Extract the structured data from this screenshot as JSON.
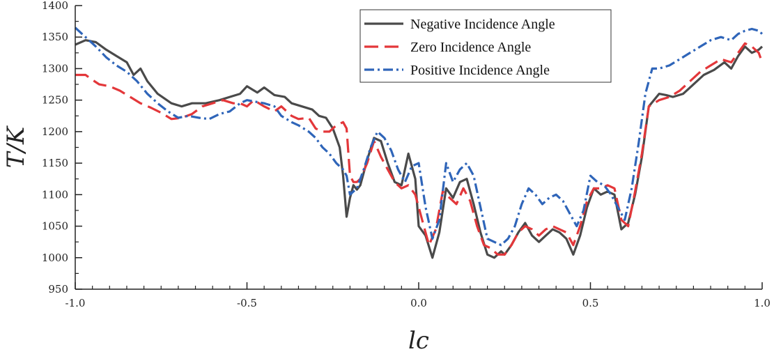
{
  "chart_data": {
    "type": "line",
    "title": "",
    "xlabel": "lc",
    "ylabel": "T/K",
    "xlim": [
      -1.0,
      1.0
    ],
    "ylim": [
      950,
      1400
    ],
    "x_ticks": [
      -1.0,
      -0.5,
      0.0,
      0.5,
      1.0
    ],
    "x_tick_labels": [
      "-1.0",
      "-0.5",
      "0.0",
      "0.5",
      "1.0"
    ],
    "y_ticks": [
      950,
      1000,
      1050,
      1100,
      1150,
      1200,
      1250,
      1300,
      1350,
      1400
    ],
    "y_tick_labels": [
      "950",
      "1000",
      "1050",
      "1100",
      "1150",
      "1200",
      "1250",
      "1300",
      "1350",
      "1400"
    ],
    "grid": false,
    "legend_position": "top-right",
    "series": [
      {
        "name": "Negative Incidence Angle",
        "color": "#4a4a4a",
        "dash": "solid",
        "x": [
          -1.0,
          -0.97,
          -0.94,
          -0.91,
          -0.88,
          -0.85,
          -0.83,
          -0.81,
          -0.79,
          -0.76,
          -0.72,
          -0.69,
          -0.66,
          -0.62,
          -0.58,
          -0.55,
          -0.52,
          -0.5,
          -0.47,
          -0.45,
          -0.42,
          -0.39,
          -0.37,
          -0.34,
          -0.31,
          -0.29,
          -0.27,
          -0.25,
          -0.23,
          -0.22,
          -0.21,
          -0.2,
          -0.19,
          -0.18,
          -0.17,
          -0.15,
          -0.13,
          -0.11,
          -0.09,
          -0.07,
          -0.05,
          -0.03,
          -0.01,
          0.0,
          0.02,
          0.04,
          0.06,
          0.08,
          0.1,
          0.12,
          0.14,
          0.16,
          0.18,
          0.2,
          0.22,
          0.24,
          0.25,
          0.27,
          0.29,
          0.31,
          0.33,
          0.35,
          0.37,
          0.39,
          0.41,
          0.43,
          0.45,
          0.47,
          0.49,
          0.51,
          0.53,
          0.55,
          0.57,
          0.59,
          0.61,
          0.63,
          0.65,
          0.67,
          0.7,
          0.72,
          0.74,
          0.77,
          0.8,
          0.83,
          0.86,
          0.89,
          0.91,
          0.93,
          0.95,
          0.97,
          0.99,
          1.0
        ],
        "y": [
          1338,
          1345,
          1342,
          1330,
          1320,
          1310,
          1290,
          1300,
          1280,
          1260,
          1245,
          1240,
          1245,
          1245,
          1250,
          1255,
          1260,
          1272,
          1262,
          1270,
          1258,
          1255,
          1245,
          1240,
          1235,
          1225,
          1222,
          1205,
          1175,
          1130,
          1065,
          1095,
          1115,
          1108,
          1115,
          1155,
          1190,
          1185,
          1150,
          1120,
          1115,
          1165,
          1125,
          1050,
          1035,
          1000,
          1040,
          1110,
          1095,
          1120,
          1125,
          1085,
          1040,
          1005,
          1000,
          1010,
          1005,
          1020,
          1040,
          1055,
          1035,
          1025,
          1035,
          1045,
          1040,
          1030,
          1005,
          1035,
          1080,
          1110,
          1100,
          1105,
          1100,
          1045,
          1055,
          1100,
          1160,
          1240,
          1260,
          1258,
          1255,
          1260,
          1275,
          1290,
          1298,
          1310,
          1300,
          1320,
          1335,
          1325,
          1330,
          1335
        ]
      },
      {
        "name": "Zero Incidence Angle",
        "color": "#e3373a",
        "dash": "dashed",
        "x": [
          -1.0,
          -0.97,
          -0.95,
          -0.93,
          -0.9,
          -0.87,
          -0.84,
          -0.81,
          -0.78,
          -0.75,
          -0.72,
          -0.69,
          -0.66,
          -0.63,
          -0.6,
          -0.57,
          -0.54,
          -0.52,
          -0.5,
          -0.48,
          -0.45,
          -0.42,
          -0.4,
          -0.37,
          -0.35,
          -0.32,
          -0.3,
          -0.28,
          -0.26,
          -0.24,
          -0.22,
          -0.21,
          -0.2,
          -0.19,
          -0.18,
          -0.17,
          -0.15,
          -0.13,
          -0.11,
          -0.09,
          -0.07,
          -0.05,
          -0.03,
          -0.01,
          0.01,
          0.03,
          0.05,
          0.07,
          0.09,
          0.11,
          0.13,
          0.15,
          0.17,
          0.19,
          0.21,
          0.23,
          0.25,
          0.27,
          0.29,
          0.31,
          0.33,
          0.35,
          0.37,
          0.39,
          0.41,
          0.43,
          0.45,
          0.47,
          0.49,
          0.51,
          0.53,
          0.55,
          0.57,
          0.59,
          0.61,
          0.63,
          0.65,
          0.67,
          0.7,
          0.73,
          0.76,
          0.79,
          0.82,
          0.85,
          0.88,
          0.91,
          0.93,
          0.95,
          0.97,
          0.99,
          1.0
        ],
        "y": [
          1290,
          1290,
          1282,
          1275,
          1272,
          1265,
          1255,
          1245,
          1238,
          1230,
          1220,
          1222,
          1228,
          1240,
          1245,
          1250,
          1245,
          1245,
          1240,
          1250,
          1240,
          1232,
          1240,
          1225,
          1220,
          1222,
          1205,
          1200,
          1200,
          1210,
          1215,
          1205,
          1130,
          1120,
          1120,
          1125,
          1150,
          1185,
          1160,
          1140,
          1120,
          1110,
          1115,
          1100,
          1060,
          1020,
          1045,
          1105,
          1095,
          1085,
          1110,
          1090,
          1050,
          1020,
          1015,
          1005,
          1005,
          1020,
          1040,
          1050,
          1045,
          1035,
          1045,
          1050,
          1045,
          1040,
          1020,
          1050,
          1090,
          1110,
          1110,
          1115,
          1110,
          1060,
          1050,
          1105,
          1165,
          1240,
          1250,
          1255,
          1265,
          1280,
          1295,
          1305,
          1315,
          1310,
          1325,
          1340,
          1335,
          1325,
          1310
        ]
      },
      {
        "name": "Positive Incidence Angle",
        "color": "#2f65b9",
        "dash": "dashdot",
        "x": [
          -1.0,
          -0.97,
          -0.94,
          -0.91,
          -0.88,
          -0.85,
          -0.82,
          -0.79,
          -0.76,
          -0.73,
          -0.7,
          -0.67,
          -0.64,
          -0.61,
          -0.58,
          -0.55,
          -0.52,
          -0.5,
          -0.48,
          -0.45,
          -0.42,
          -0.4,
          -0.37,
          -0.35,
          -0.32,
          -0.3,
          -0.28,
          -0.26,
          -0.24,
          -0.22,
          -0.21,
          -0.2,
          -0.19,
          -0.18,
          -0.16,
          -0.14,
          -0.12,
          -0.1,
          -0.08,
          -0.06,
          -0.04,
          -0.02,
          0.0,
          0.02,
          0.04,
          0.06,
          0.08,
          0.1,
          0.12,
          0.14,
          0.16,
          0.18,
          0.2,
          0.22,
          0.24,
          0.26,
          0.28,
          0.3,
          0.32,
          0.34,
          0.36,
          0.38,
          0.4,
          0.42,
          0.44,
          0.46,
          0.48,
          0.5,
          0.52,
          0.54,
          0.56,
          0.58,
          0.6,
          0.62,
          0.64,
          0.66,
          0.68,
          0.7,
          0.73,
          0.76,
          0.79,
          0.82,
          0.85,
          0.88,
          0.91,
          0.93,
          0.95,
          0.97,
          0.99,
          1.0
        ],
        "y": [
          1365,
          1350,
          1335,
          1318,
          1305,
          1295,
          1280,
          1260,
          1245,
          1232,
          1222,
          1225,
          1222,
          1220,
          1228,
          1232,
          1245,
          1250,
          1248,
          1245,
          1240,
          1225,
          1215,
          1210,
          1200,
          1190,
          1175,
          1165,
          1150,
          1140,
          1130,
          1100,
          1105,
          1110,
          1140,
          1175,
          1200,
          1190,
          1170,
          1140,
          1120,
          1145,
          1150,
          1080,
          1030,
          1060,
          1150,
          1120,
          1140,
          1150,
          1130,
          1080,
          1030,
          1025,
          1020,
          1030,
          1050,
          1085,
          1110,
          1100,
          1085,
          1095,
          1100,
          1090,
          1070,
          1050,
          1075,
          1130,
          1120,
          1115,
          1100,
          1080,
          1060,
          1110,
          1180,
          1260,
          1300,
          1300,
          1305,
          1315,
          1325,
          1335,
          1345,
          1350,
          1345,
          1355,
          1360,
          1363,
          1360,
          1355
        ]
      }
    ]
  }
}
